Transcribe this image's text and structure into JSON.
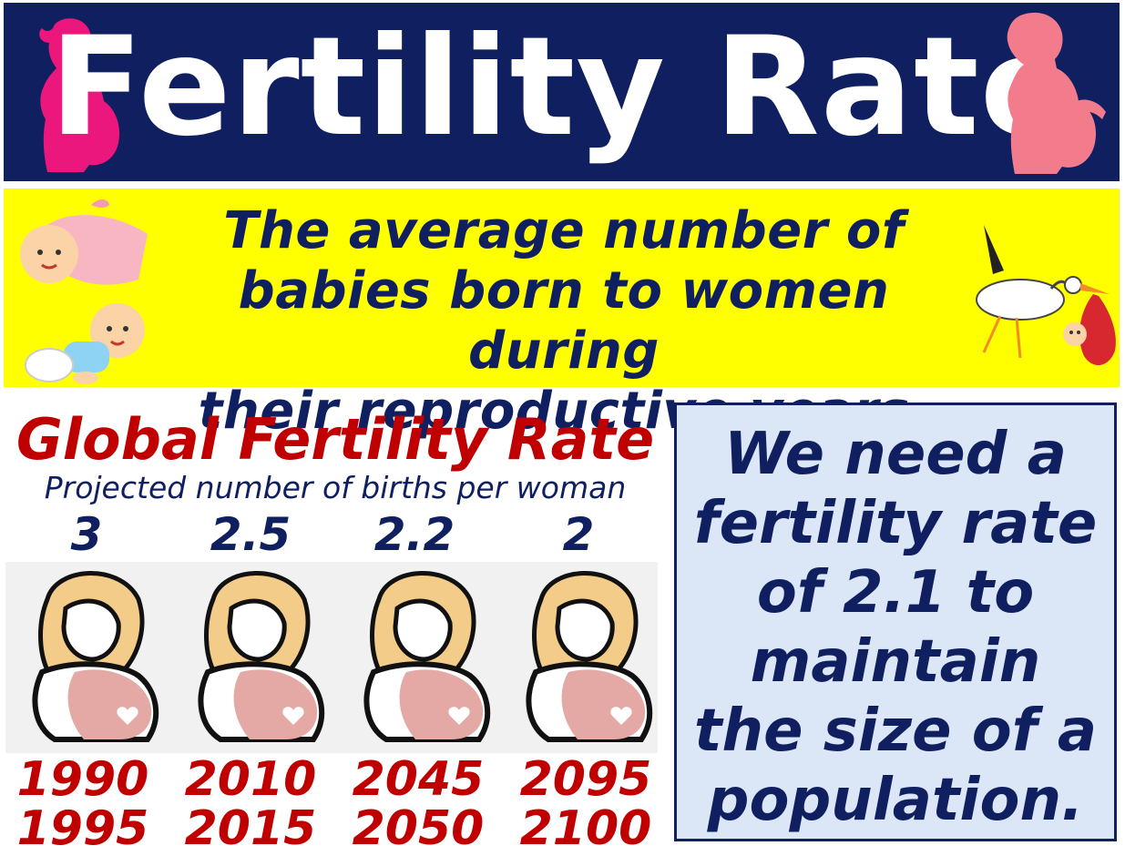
{
  "banner": {
    "title": "Fertility Rate",
    "bg_color": "#0f1f5f",
    "left_icon": "pregnant-woman-silhouette-icon",
    "right_icon": "pregnant-woman-silhouette-icon"
  },
  "definition": {
    "line1": "The average number of",
    "line2": "babies born to women during",
    "line3": "their reproductive years.",
    "bg_color": "#ffff00",
    "left_icons": [
      "baby-in-blanket-icon",
      "crawling-baby-icon"
    ],
    "right_icon": "stork-carrying-baby-icon"
  },
  "global": {
    "title": "Global Fertility Rate",
    "subtitle": "Projected number of births per woman",
    "entries": [
      {
        "rate": "3",
        "year_start": "1990",
        "year_end": "1995"
      },
      {
        "rate": "2.5",
        "year_start": "2010",
        "year_end": "2015"
      },
      {
        "rate": "2.2",
        "year_start": "2045",
        "year_end": "2050"
      },
      {
        "rate": "2",
        "year_start": "2095",
        "year_end": "2100"
      }
    ],
    "figure_icon": "pregnant-woman-icon"
  },
  "note": {
    "line1": "We need a",
    "line2": "fertility rate",
    "line3": "of 2.1 to",
    "line4": "maintain",
    "line5": "the size of a",
    "line6": "population.",
    "bg_color": "#dbe6f6"
  }
}
